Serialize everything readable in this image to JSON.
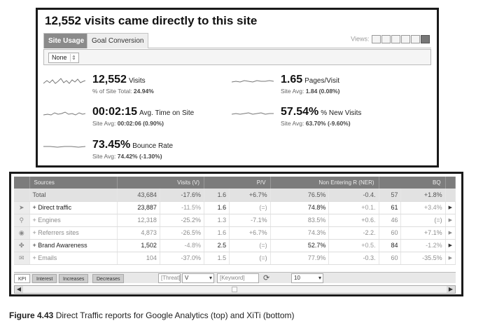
{
  "ga": {
    "title": "12,552 visits came directly to this site",
    "tabs": [
      {
        "label": "Site Usage",
        "active": true
      },
      {
        "label": "Goal Conversion",
        "active": false
      }
    ],
    "views_label": "Views:",
    "filter_value": "None",
    "metrics": [
      {
        "value": "12,552",
        "label": "Visits",
        "sub_prefix": "% of Site Total:",
        "sub_value": "24.94%"
      },
      {
        "value": "1.65",
        "label": "Pages/Visit",
        "sub_prefix": "Site Avg:",
        "sub_value": "1.84 (0.08%)"
      },
      {
        "value": "00:02:15",
        "label": "Avg. Time on Site",
        "sub_prefix": "Site Avg:",
        "sub_value": "00:02:06 (0.90%)"
      },
      {
        "value": "57.54%",
        "label": "% New Visits",
        "sub_prefix": "Site Avg:",
        "sub_value": "63.70% (-9.60%)"
      },
      {
        "value": "73.45%",
        "label": "Bounce Rate",
        "sub_prefix": "Site Avg:",
        "sub_value": "74.42% (-1.30%)"
      }
    ]
  },
  "xiti": {
    "headers": {
      "sources": "Sources",
      "visits": "Visits (V)",
      "pv": "P/V",
      "ner": "Non Entering R (NER)",
      "bq": "BQ"
    },
    "rows": [
      {
        "name": "Total",
        "visits": "43,684",
        "vd": "-17.6%",
        "pv": "1.6",
        "pvd": "+6.7%",
        "ner": "76.5%",
        "nerd": "-0.4.",
        "bq": "57",
        "bqd": "+1.8%",
        "type": "total"
      },
      {
        "name": "+ Direct traffic",
        "visits": "23,887",
        "vd": "-11.5%",
        "pv": "1.6",
        "pvd": "(=)",
        "ner": "74.8%",
        "nerd": "+0.1.",
        "bq": "61",
        "bqd": "+3.4%",
        "type": "normal"
      },
      {
        "name": "+ Engines",
        "visits": "12,318",
        "vd": "-25.2%",
        "pv": "1.3",
        "pvd": "-7.1%",
        "ner": "83.5%",
        "nerd": "+0.6.",
        "bq": "46",
        "bqd": "(=)",
        "type": "faded"
      },
      {
        "name": "+ Referrers sites",
        "visits": "4,873",
        "vd": "-26.5%",
        "pv": "1.6",
        "pvd": "+6.7%",
        "ner": "74.3%",
        "nerd": "-2.2.",
        "bq": "60",
        "bqd": "+7.1%",
        "type": "faded"
      },
      {
        "name": "+ Brand Awareness",
        "visits": "1,502",
        "vd": "-4.8%",
        "pv": "2.5",
        "pvd": "(=)",
        "ner": "52.7%",
        "nerd": "+0.5.",
        "bq": "84",
        "bqd": "-1.2%",
        "type": "normal"
      },
      {
        "name": "+ Emails",
        "visits": "104",
        "vd": "-37.0%",
        "pv": "1.5",
        "pvd": "(=)",
        "ner": "77.9%",
        "nerd": "-0.3.",
        "bq": "60",
        "bqd": "-35.5%",
        "type": "faded"
      }
    ],
    "tabs": [
      "KPI",
      "Interest",
      "Increases",
      "Decreases"
    ],
    "threat_placeholder": "[Threat]",
    "threat_value": "V",
    "keyword_placeholder": "[Keyword]",
    "per_page": "10"
  },
  "caption": {
    "figure": "Figure 4.43",
    "text": "Direct Traffic reports for Google Analytics (top) and XiTi (bottom)"
  }
}
